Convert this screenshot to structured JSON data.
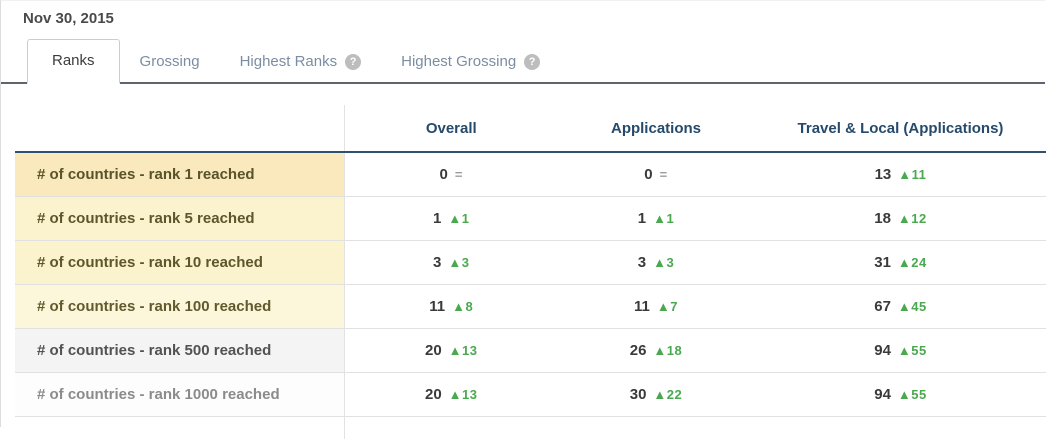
{
  "page": {
    "date": "Nov 30, 2015"
  },
  "tabs": [
    {
      "label": "Ranks",
      "active": true
    },
    {
      "label": "Grossing",
      "active": false
    },
    {
      "label": "Highest Ranks",
      "active": false,
      "help_icon": "question-mark"
    },
    {
      "label": "Highest Grossing",
      "active": false,
      "help_icon": "question-mark"
    }
  ],
  "help_glyph": "?",
  "table": {
    "columns": [
      "Overall",
      "Applications",
      "Travel & Local (Applications)"
    ],
    "rows": [
      {
        "label": "# of countries - rank 1 reached",
        "tone": "amber",
        "cells": [
          {
            "value": "0",
            "delta": "=",
            "direction": "flat"
          },
          {
            "value": "0",
            "delta": "=",
            "direction": "flat"
          },
          {
            "value": "13",
            "delta": "▲11",
            "direction": "up"
          }
        ]
      },
      {
        "label": "# of countries - rank 5 reached",
        "tone": "yellow",
        "cells": [
          {
            "value": "1",
            "delta": "▲1",
            "direction": "up"
          },
          {
            "value": "1",
            "delta": "▲1",
            "direction": "up"
          },
          {
            "value": "18",
            "delta": "▲12",
            "direction": "up"
          }
        ]
      },
      {
        "label": "# of countries - rank 10 reached",
        "tone": "yellow",
        "cells": [
          {
            "value": "3",
            "delta": "▲3",
            "direction": "up"
          },
          {
            "value": "3",
            "delta": "▲3",
            "direction": "up"
          },
          {
            "value": "31",
            "delta": "▲24",
            "direction": "up"
          }
        ]
      },
      {
        "label": "# of countries - rank 100 reached",
        "tone": "pale",
        "cells": [
          {
            "value": "11",
            "delta": "▲8",
            "direction": "up"
          },
          {
            "value": "11",
            "delta": "▲7",
            "direction": "up"
          },
          {
            "value": "67",
            "delta": "▲45",
            "direction": "up"
          }
        ]
      },
      {
        "label": "# of countries - rank 500 reached",
        "tone": "gray",
        "cells": [
          {
            "value": "20",
            "delta": "▲13",
            "direction": "up"
          },
          {
            "value": "26",
            "delta": "▲18",
            "direction": "up"
          },
          {
            "value": "94",
            "delta": "▲55",
            "direction": "up"
          }
        ]
      },
      {
        "label": "# of countries - rank 1000 reached",
        "tone": "white",
        "cells": [
          {
            "value": "20",
            "delta": "▲13",
            "direction": "up"
          },
          {
            "value": "30",
            "delta": "▲22",
            "direction": "up"
          },
          {
            "value": "94",
            "delta": "▲55",
            "direction": "up"
          }
        ]
      }
    ]
  },
  "colors": {
    "accent_header": "#264a6b",
    "change_up_green": "#4aa84f",
    "change_flat_gray": "#9c9c9c",
    "row_amber": "#f9e9bd",
    "row_yellow": "#fbf3cd",
    "row_pale_yellow": "#fcf7da",
    "row_gray": "#f4f4f4",
    "tab_inactive": "#7b8da2",
    "tab_underline": "#5d656f"
  }
}
